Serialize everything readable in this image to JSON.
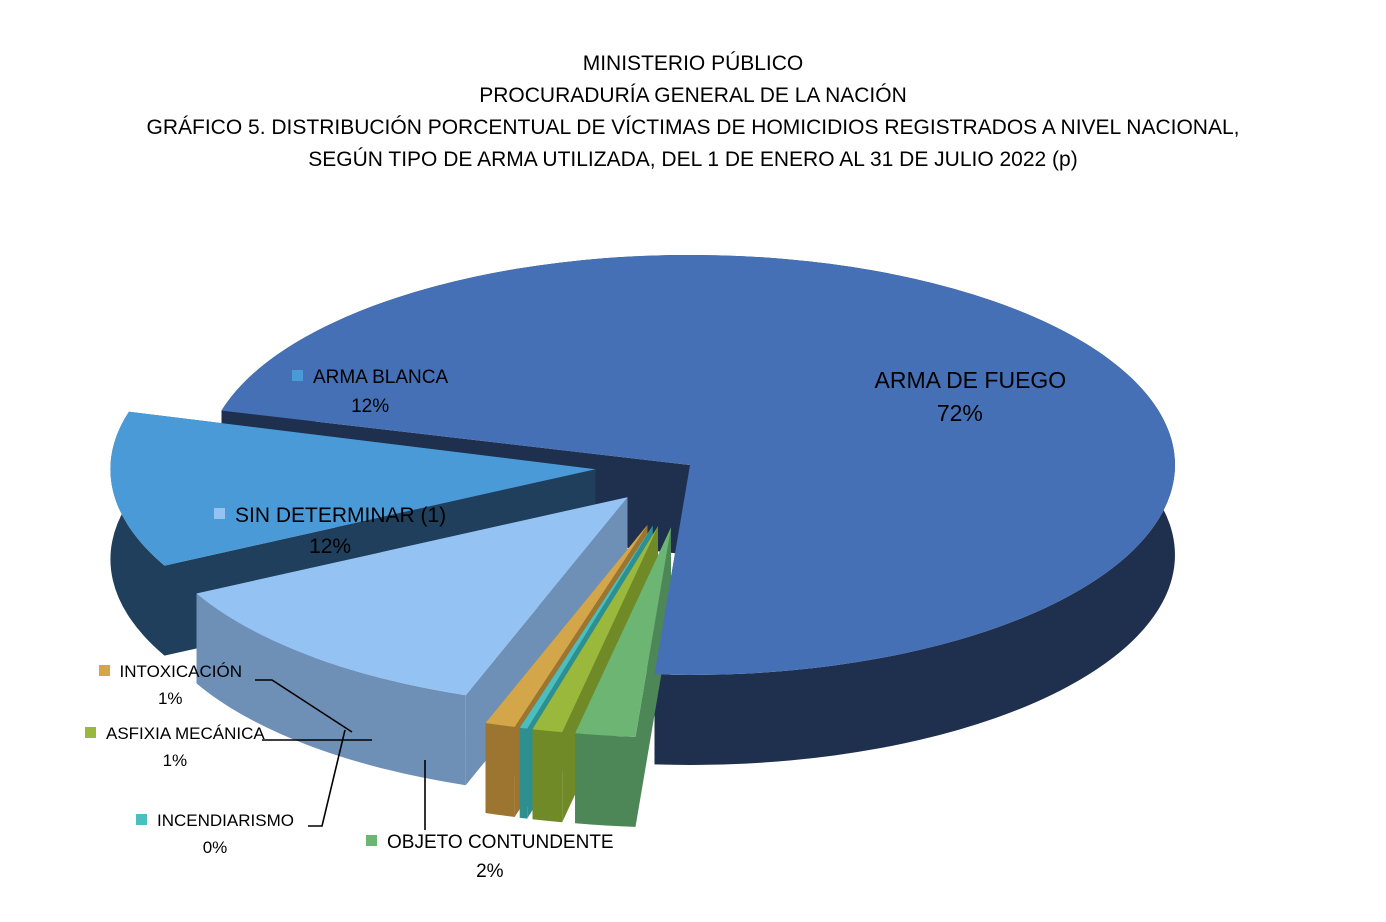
{
  "title": {
    "line1": "MINISTERIO PÚBLICO",
    "line2": "PROCURADURÍA GENERAL DE LA NACIÓN",
    "line3": "GRÁFICO 5. DISTRIBUCIÓN PORCENTUAL DE VÍCTIMAS DE HOMICIDIOS REGISTRADOS A NIVEL NACIONAL,",
    "line4": "SEGÚN TIPO DE ARMA UTILIZADA, DEL 1 DE ENERO AL 31 DE JULIO 2022 (p)"
  },
  "chart_data": {
    "type": "pie",
    "title": "GRÁFICO 5. DISTRIBUCIÓN PORCENTUAL DE VÍCTIMAS DE HOMICIDIOS REGISTRADOS A NIVEL NACIONAL, SEGÚN TIPO DE ARMA UTILIZADA, DEL 1 DE ENERO AL 31 DE JULIO 2022 (p)",
    "style": "3d-exploded",
    "slices": [
      {
        "label": "ARMA DE FUEGO",
        "value": 72,
        "pct_label": "72%",
        "color": "#4570b5",
        "side_color": "#1f2f4e"
      },
      {
        "label": "OBJETO CONTUNDENTE",
        "value": 2,
        "pct_label": "2%",
        "color": "#6cb573",
        "side_color": "#4e8757"
      },
      {
        "label": "ASFIXIA MECÁNICA",
        "value": 1,
        "pct_label": "1%",
        "color": "#9ab83c",
        "side_color": "#6f8a26"
      },
      {
        "label": "INCENDIARISMO",
        "value": 0,
        "pct_label": "0%",
        "color": "#4bbfc0",
        "side_color": "#2e8f90"
      },
      {
        "label": "INTOXICACIÓN",
        "value": 1,
        "pct_label": "1%",
        "color": "#d4a64a",
        "side_color": "#9c7531"
      },
      {
        "label": "SIN DETERMINAR (1)",
        "value": 12,
        "pct_label": "12%",
        "color": "#94c3f3",
        "side_color": "#6e8fb6"
      },
      {
        "label": "ARMA BLANCA",
        "value": 12,
        "pct_label": "12%",
        "color": "#4a9ad8",
        "side_color": "#1f3f5c"
      }
    ]
  }
}
